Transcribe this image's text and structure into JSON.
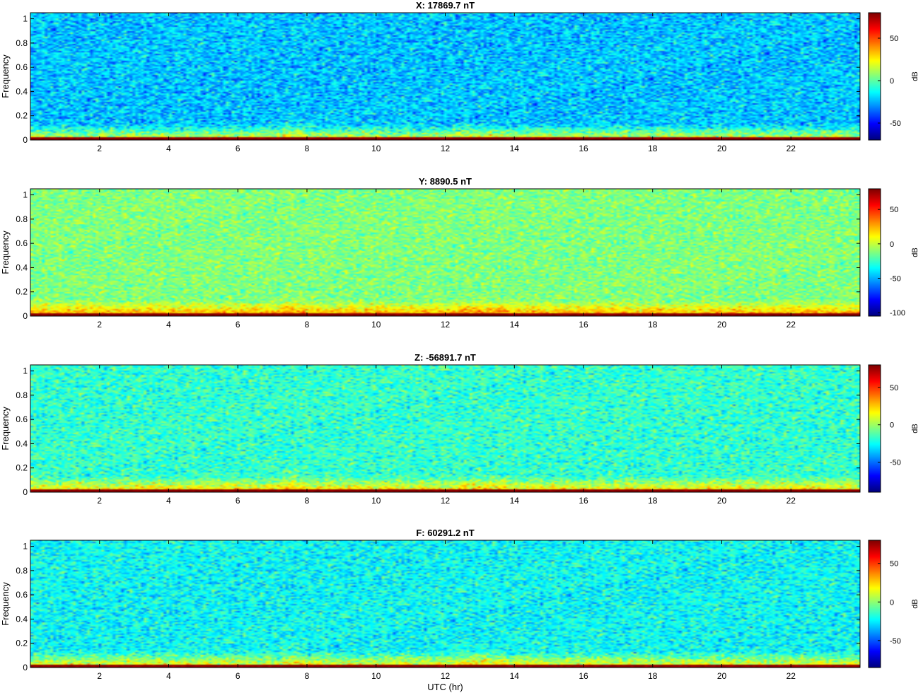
{
  "chart_data": [
    {
      "type": "heatmap",
      "title": "X: 17869.7 nT",
      "ylabel": "Frequency",
      "xlabel": "",
      "xlim": [
        0,
        24
      ],
      "ylim": [
        0,
        1.05
      ],
      "xticks": [
        2,
        4,
        6,
        8,
        10,
        12,
        14,
        16,
        18,
        20,
        22
      ],
      "yticks": [
        0,
        0.2,
        0.4,
        0.6,
        0.8,
        1
      ],
      "colorbar": {
        "label": "dB",
        "range": [
          -70,
          80
        ],
        "ticks": [
          -50,
          0,
          50
        ]
      },
      "noise_level_db": -22,
      "noise_spread_db": 14
    },
    {
      "type": "heatmap",
      "title": "Y: 8890.5 nT",
      "ylabel": "Frequency",
      "xlabel": "",
      "xlim": [
        0,
        24
      ],
      "ylim": [
        0,
        1.05
      ],
      "xticks": [
        2,
        4,
        6,
        8,
        10,
        12,
        14,
        16,
        18,
        20,
        22
      ],
      "yticks": [
        0,
        0.2,
        0.4,
        0.6,
        0.8,
        1
      ],
      "colorbar": {
        "label": "dB",
        "range": [
          -105,
          80
        ],
        "ticks": [
          -100,
          -50,
          0,
          50
        ]
      },
      "noise_level_db": -12,
      "noise_spread_db": 13
    },
    {
      "type": "heatmap",
      "title": "Z: -56891.7 nT",
      "ylabel": "Frequency",
      "xlabel": "",
      "xlim": [
        0,
        24
      ],
      "ylim": [
        0,
        1.05
      ],
      "xticks": [
        2,
        4,
        6,
        8,
        10,
        12,
        14,
        16,
        18,
        20,
        22
      ],
      "yticks": [
        0,
        0.2,
        0.4,
        0.6,
        0.8,
        1
      ],
      "colorbar": {
        "label": "dB",
        "range": [
          -90,
          80
        ],
        "ticks": [
          -50,
          0,
          50
        ]
      },
      "noise_level_db": -18,
      "noise_spread_db": 14
    },
    {
      "type": "heatmap",
      "title": "F: 60291.2 nT",
      "ylabel": "Frequency",
      "xlabel": "UTC (hr)",
      "xlim": [
        0,
        24
      ],
      "ylim": [
        0,
        1.05
      ],
      "xticks": [
        2,
        4,
        6,
        8,
        10,
        12,
        14,
        16,
        18,
        20,
        22
      ],
      "yticks": [
        0,
        0.2,
        0.4,
        0.6,
        0.8,
        1
      ],
      "colorbar": {
        "label": "dB",
        "range": [
          -85,
          80
        ],
        "ticks": [
          -50,
          0,
          50
        ]
      },
      "noise_level_db": -22,
      "noise_spread_db": 14
    }
  ]
}
